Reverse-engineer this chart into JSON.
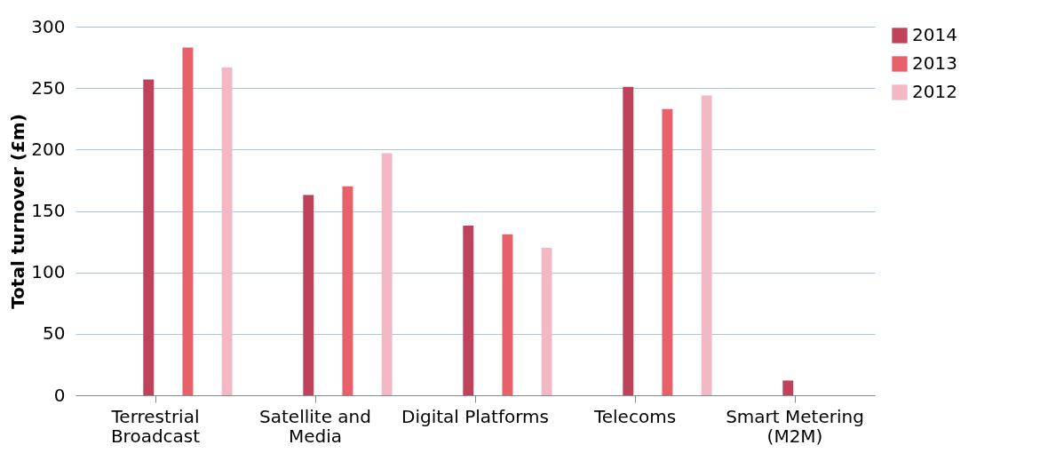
{
  "chart_data": {
    "type": "bar",
    "ylabel": "Total turnover (£m)",
    "categories": [
      "Terrestrial Broadcast",
      "Satellite and Media",
      "Digital Platforms",
      "Telecoms",
      "Smart Metering (M2M)"
    ],
    "series": [
      {
        "name": "2014",
        "color": "#c0415a",
        "values": [
          257,
          163,
          138,
          251,
          12
        ]
      },
      {
        "name": "2013",
        "color": "#e8606a",
        "values": [
          283,
          170,
          131,
          233,
          null
        ]
      },
      {
        "name": "2012",
        "color": "#f2b8c4",
        "values": [
          267,
          197,
          120,
          244,
          null
        ]
      }
    ],
    "ylim": [
      0,
      300
    ],
    "yticks": [
      0,
      50,
      100,
      150,
      200,
      250,
      300
    ],
    "grid": "y",
    "legend": "right"
  }
}
